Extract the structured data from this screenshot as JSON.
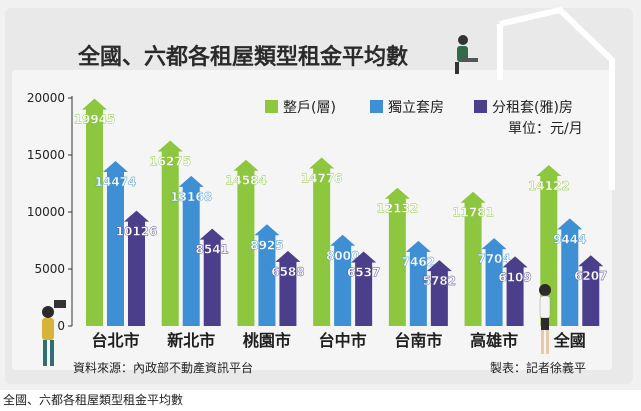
{
  "caption": "全國、六都各租屋類型租金平均數",
  "colors": {
    "green": "#8dc63f",
    "blue": "#3f8fd4",
    "purple": "#4b3f8c"
  },
  "chart_data": {
    "type": "bar",
    "title": "全國、六都各租屋類型租金平均數",
    "categories": [
      "台北市",
      "新北市",
      "桃園市",
      "台中市",
      "台南市",
      "高雄市",
      "全國"
    ],
    "series": [
      {
        "name": "整戶(層)",
        "color": "#8dc63f",
        "values": [
          19945,
          16275,
          14584,
          14776,
          12132,
          11781,
          14122
        ]
      },
      {
        "name": "獨立套房",
        "color": "#3f8fd4",
        "values": [
          14474,
          13168,
          8925,
          8000,
          7462,
          7704,
          9444
        ]
      },
      {
        "name": "分租套(雅)房",
        "color": "#4b3f8c",
        "values": [
          10126,
          8541,
          6588,
          6537,
          5782,
          6109,
          6207
        ]
      }
    ],
    "ylim": [
      0,
      20000
    ],
    "yticks": [
      0,
      5000,
      10000,
      15000,
      20000
    ],
    "unit": "單位：元/月",
    "legend_position": "top-right",
    "source": "資料來源：內政部不動產資訊平台",
    "credit": "製表：記者徐義平"
  }
}
